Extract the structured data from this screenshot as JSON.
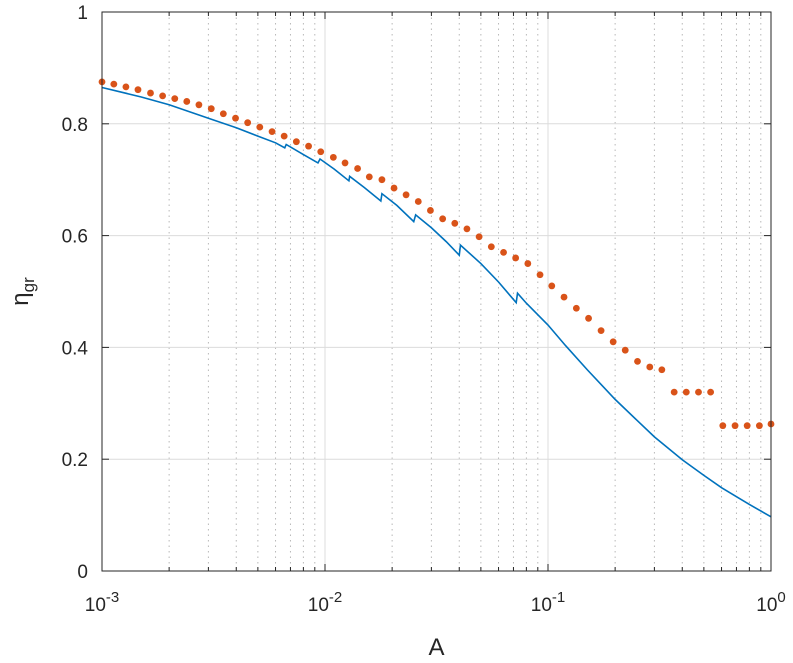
{
  "chart_data": {
    "type": "line",
    "xlabel": "A",
    "ylabel_main": "η",
    "ylabel_sub": "gr",
    "x_scale": "log",
    "xlim": [
      0.001,
      1
    ],
    "ylim": [
      0,
      1
    ],
    "grid": true,
    "minor_grid_x": true,
    "x_ticks": [
      {
        "base": "10",
        "exp": "-3",
        "value": 0.001
      },
      {
        "base": "10",
        "exp": "-2",
        "value": 0.01
      },
      {
        "base": "10",
        "exp": "-1",
        "value": 0.1
      },
      {
        "base": "10",
        "exp": "0",
        "value": 1
      }
    ],
    "y_ticks": [
      {
        "label": "0",
        "value": 0
      },
      {
        "label": "0.2",
        "value": 0.2
      },
      {
        "label": "0.4",
        "value": 0.4
      },
      {
        "label": "0.6",
        "value": 0.6
      },
      {
        "label": "0.8",
        "value": 0.8
      },
      {
        "label": "1",
        "value": 1
      }
    ],
    "series": [
      {
        "style": "line",
        "color": "#0072BD",
        "x": [
          0.001,
          0.0015,
          0.002,
          0.003,
          0.004,
          0.005,
          0.006,
          0.0066,
          0.0067,
          0.008,
          0.0093,
          0.0095,
          0.011,
          0.0128,
          0.0129,
          0.015,
          0.0178,
          0.018,
          0.021,
          0.025,
          0.0255,
          0.03,
          0.035,
          0.04,
          0.0405,
          0.05,
          0.06,
          0.072,
          0.073,
          0.08,
          0.1,
          0.12,
          0.15,
          0.2,
          0.25,
          0.3,
          0.4,
          0.5,
          0.6,
          0.7,
          0.8,
          1.0
        ],
        "y": [
          0.865,
          0.848,
          0.834,
          0.81,
          0.793,
          0.778,
          0.766,
          0.757,
          0.763,
          0.745,
          0.73,
          0.737,
          0.719,
          0.698,
          0.706,
          0.686,
          0.662,
          0.675,
          0.654,
          0.625,
          0.637,
          0.614,
          0.589,
          0.565,
          0.583,
          0.55,
          0.517,
          0.48,
          0.497,
          0.479,
          0.44,
          0.403,
          0.36,
          0.307,
          0.27,
          0.24,
          0.199,
          0.171,
          0.149,
          0.133,
          0.119,
          0.097
        ]
      },
      {
        "style": "dots",
        "color": "#D95319",
        "x": [
          0.001,
          0.00113,
          0.00128,
          0.00145,
          0.00165,
          0.00187,
          0.00212,
          0.0024,
          0.00272,
          0.00309,
          0.0035,
          0.00397,
          0.0045,
          0.0051,
          0.00579,
          0.00656,
          0.00744,
          0.00844,
          0.00957,
          0.0109,
          0.0123,
          0.014,
          0.0158,
          0.018,
          0.0204,
          0.0231,
          0.0262,
          0.0297,
          0.0337,
          0.0382,
          0.0433,
          0.0491,
          0.0557,
          0.0632,
          0.0716,
          0.0812,
          0.0921,
          0.104,
          0.118,
          0.134,
          0.152,
          0.173,
          0.196,
          0.222,
          0.252,
          0.286,
          0.324,
          0.368,
          0.417,
          0.473,
          0.536,
          0.608,
          0.69,
          0.782,
          0.887,
          1.0
        ],
        "y": [
          0.875,
          0.871,
          0.866,
          0.861,
          0.855,
          0.85,
          0.845,
          0.84,
          0.834,
          0.827,
          0.818,
          0.81,
          0.802,
          0.794,
          0.786,
          0.778,
          0.768,
          0.76,
          0.75,
          0.74,
          0.73,
          0.72,
          0.705,
          0.7,
          0.685,
          0.673,
          0.661,
          0.645,
          0.63,
          0.622,
          0.612,
          0.598,
          0.58,
          0.57,
          0.56,
          0.55,
          0.53,
          0.51,
          0.49,
          0.47,
          0.452,
          0.43,
          0.41,
          0.395,
          0.375,
          0.365,
          0.36,
          0.32,
          0.32,
          0.32,
          0.32,
          0.26,
          0.26,
          0.26,
          0.26,
          0.263
        ]
      }
    ]
  }
}
